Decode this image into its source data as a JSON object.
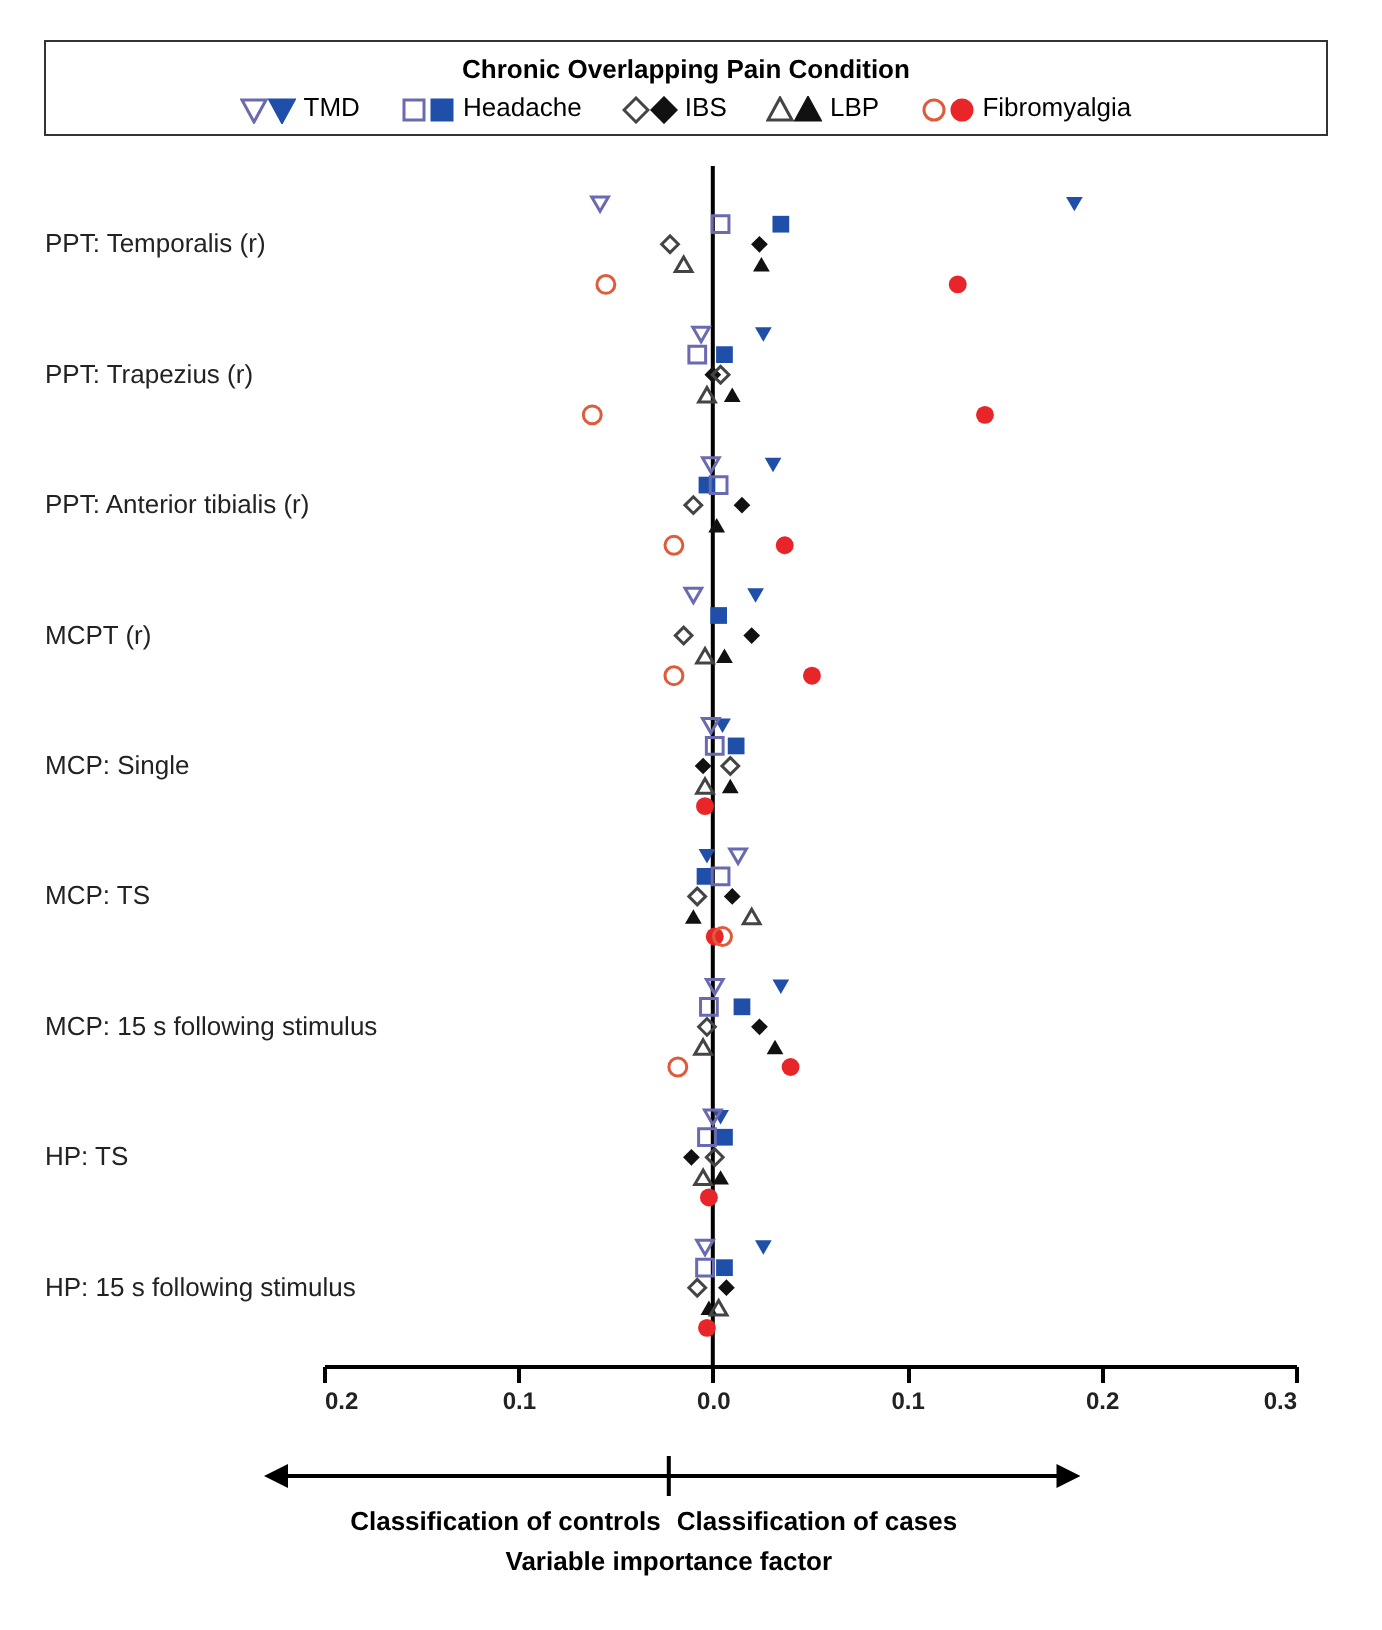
{
  "chart_data": {
    "type": "scatter",
    "legend_title": "Chronic Overlapping Pain Condition",
    "annotations": [
      "Classification of controls",
      "Classification of cases",
      "Variable importance factor"
    ],
    "categories": [
      "PPT: Temporalis (r)",
      "PPT: Trapezius (r)",
      "PPT: Anterior tibialis (r)",
      "MCPT (r)",
      "MCP: Single",
      "MCP: TS",
      "MCP: 15 s following stimulus",
      "HP: TS",
      "HP: 15 s following stimulus"
    ],
    "xlim": [
      -0.2,
      0.3
    ],
    "xticks": [
      {
        "value": -0.2,
        "label": "0.2"
      },
      {
        "value": -0.1,
        "label": "0.1"
      },
      {
        "value": 0,
        "label": "0.0"
      },
      {
        "value": 0.1,
        "label": "0.1"
      },
      {
        "value": 0.2,
        "label": "0.2"
      },
      {
        "value": 0.3,
        "label": "0.3"
      }
    ],
    "orientation": "horizontal",
    "grid": false,
    "legend": "top",
    "ref_lines": [
      {
        "axis": "x",
        "value": 0,
        "color": "#000000"
      }
    ],
    "series": [
      {
        "name": "TMD",
        "color": "#1f4fa8",
        "marker": "triangle-down",
        "values": [
          0.186,
          0.026,
          0.031,
          0.022,
          0.005,
          -0.003,
          0.035,
          0.004,
          0.026
        ]
      },
      {
        "color": "#6a6ab0",
        "marker": "triangle-down-open",
        "values": [
          -0.058,
          -0.006,
          -0.001,
          -0.01,
          -0.001,
          0.013,
          0.001,
          0.0,
          -0.004
        ]
      },
      {
        "name": "Headache",
        "color": "#1f4fa8",
        "marker": "square",
        "values": [
          0.035,
          0.006,
          -0.003,
          0.003,
          0.012,
          -0.004,
          0.015,
          0.006,
          0.006
        ]
      },
      {
        "color": "#6a6ab0",
        "marker": "square-open",
        "values": [
          0.004,
          -0.008,
          0.003,
          null,
          0.001,
          0.004,
          -0.002,
          -0.003,
          -0.004
        ]
      },
      {
        "name": "IBS",
        "color": "#111111",
        "marker": "diamond",
        "values": [
          0.024,
          0.0,
          0.015,
          0.02,
          -0.005,
          0.01,
          0.024,
          -0.011,
          0.007
        ]
      },
      {
        "color": "#444444",
        "marker": "diamond-open",
        "values": [
          -0.022,
          0.004,
          -0.01,
          -0.015,
          0.009,
          -0.008,
          -0.003,
          0.001,
          -0.008
        ]
      },
      {
        "name": "LBP",
        "color": "#111111",
        "marker": "triangle",
        "values": [
          0.025,
          0.01,
          0.002,
          0.006,
          0.009,
          -0.01,
          0.032,
          0.004,
          -0.002
        ]
      },
      {
        "color": "#444444",
        "marker": "triangle-open",
        "values": [
          -0.015,
          -0.003,
          null,
          -0.004,
          -0.004,
          0.02,
          -0.005,
          -0.005,
          0.003
        ]
      },
      {
        "name": "Fibromyalgia",
        "color": "#e8262a",
        "marker": "circle",
        "values": [
          0.126,
          0.14,
          0.037,
          0.051,
          -0.004,
          0.001,
          0.04,
          -0.002,
          -0.003
        ]
      },
      {
        "color": "#e05a3c",
        "marker": "circle-open",
        "values": [
          -0.055,
          -0.062,
          -0.02,
          -0.02,
          null,
          0.005,
          -0.018,
          null,
          null
        ]
      }
    ]
  }
}
